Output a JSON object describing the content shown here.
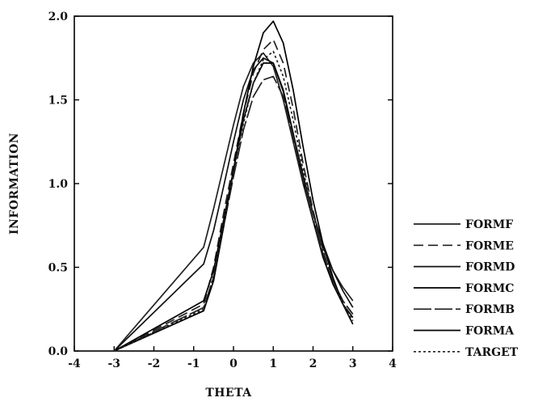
{
  "chart_data": {
    "type": "line",
    "title": "",
    "xlabel": "THETA",
    "ylabel": "INFORMATION",
    "xlim": [
      -4,
      4
    ],
    "ylim": [
      0,
      2
    ],
    "xticks": [
      -4,
      -3,
      -2,
      -1,
      0,
      1,
      2,
      3,
      4
    ],
    "xtick_labels": [
      "-4",
      "-3",
      "-2",
      "-1",
      "0",
      "1",
      "2",
      "3",
      "4"
    ],
    "yticks": [
      0,
      0.5,
      1,
      1.5,
      2
    ],
    "ytick_labels": [
      "0.0",
      "0.5",
      "1.0",
      "1.5",
      "2.0"
    ],
    "grid": false,
    "legend_position": "right",
    "x": [
      -3,
      -0.75,
      -0.5,
      -0.25,
      0,
      0.25,
      0.5,
      0.75,
      1,
      1.25,
      1.5,
      1.75,
      2,
      2.25,
      2.5,
      2.75,
      3
    ],
    "series": [
      {
        "name": "FORMF",
        "color": "#222222",
        "dash": "none",
        "values": [
          0.0,
          0.62,
          0.85,
          1.1,
          1.35,
          1.58,
          1.72,
          1.78,
          1.7,
          1.5,
          1.25,
          1.0,
          0.78,
          0.62,
          0.48,
          0.38,
          0.3
        ]
      },
      {
        "name": "FORME",
        "color": "#222222",
        "dash": "12 6",
        "values": [
          0.0,
          0.28,
          0.5,
          0.82,
          1.12,
          1.42,
          1.66,
          1.8,
          1.86,
          1.72,
          1.45,
          1.12,
          0.84,
          0.6,
          0.42,
          0.3,
          0.22
        ]
      },
      {
        "name": "FORMD",
        "color": "#111111",
        "dash": "none",
        "values": [
          0.0,
          0.52,
          0.72,
          0.98,
          1.25,
          1.5,
          1.68,
          1.75,
          1.72,
          1.55,
          1.3,
          1.05,
          0.82,
          0.64,
          0.48,
          0.36,
          0.26
        ]
      },
      {
        "name": "FORMC",
        "color": "#000000",
        "dash": "none",
        "values": [
          0.0,
          0.3,
          0.48,
          0.78,
          1.08,
          1.38,
          1.6,
          1.72,
          1.72,
          1.56,
          1.3,
          1.02,
          0.78,
          0.56,
          0.4,
          0.28,
          0.2
        ]
      },
      {
        "name": "FORMB",
        "color": "#222222",
        "dash": "22 4",
        "values": [
          0.0,
          0.26,
          0.44,
          0.74,
          1.04,
          1.32,
          1.52,
          1.62,
          1.64,
          1.52,
          1.28,
          1.02,
          0.78,
          0.58,
          0.42,
          0.3,
          0.22
        ]
      },
      {
        "name": "FORMA",
        "color": "#000000",
        "dash": "none",
        "values": [
          0.0,
          0.24,
          0.42,
          0.74,
          1.08,
          1.42,
          1.7,
          1.9,
          1.97,
          1.84,
          1.56,
          1.22,
          0.9,
          0.64,
          0.44,
          0.28,
          0.16
        ]
      },
      {
        "name": "TARGET",
        "color": "#222222",
        "dash": "3 3",
        "values": [
          0.0,
          0.25,
          0.45,
          0.76,
          1.06,
          1.36,
          1.6,
          1.74,
          1.79,
          1.64,
          1.38,
          1.08,
          0.82,
          0.6,
          0.42,
          0.28,
          0.18
        ]
      }
    ]
  }
}
